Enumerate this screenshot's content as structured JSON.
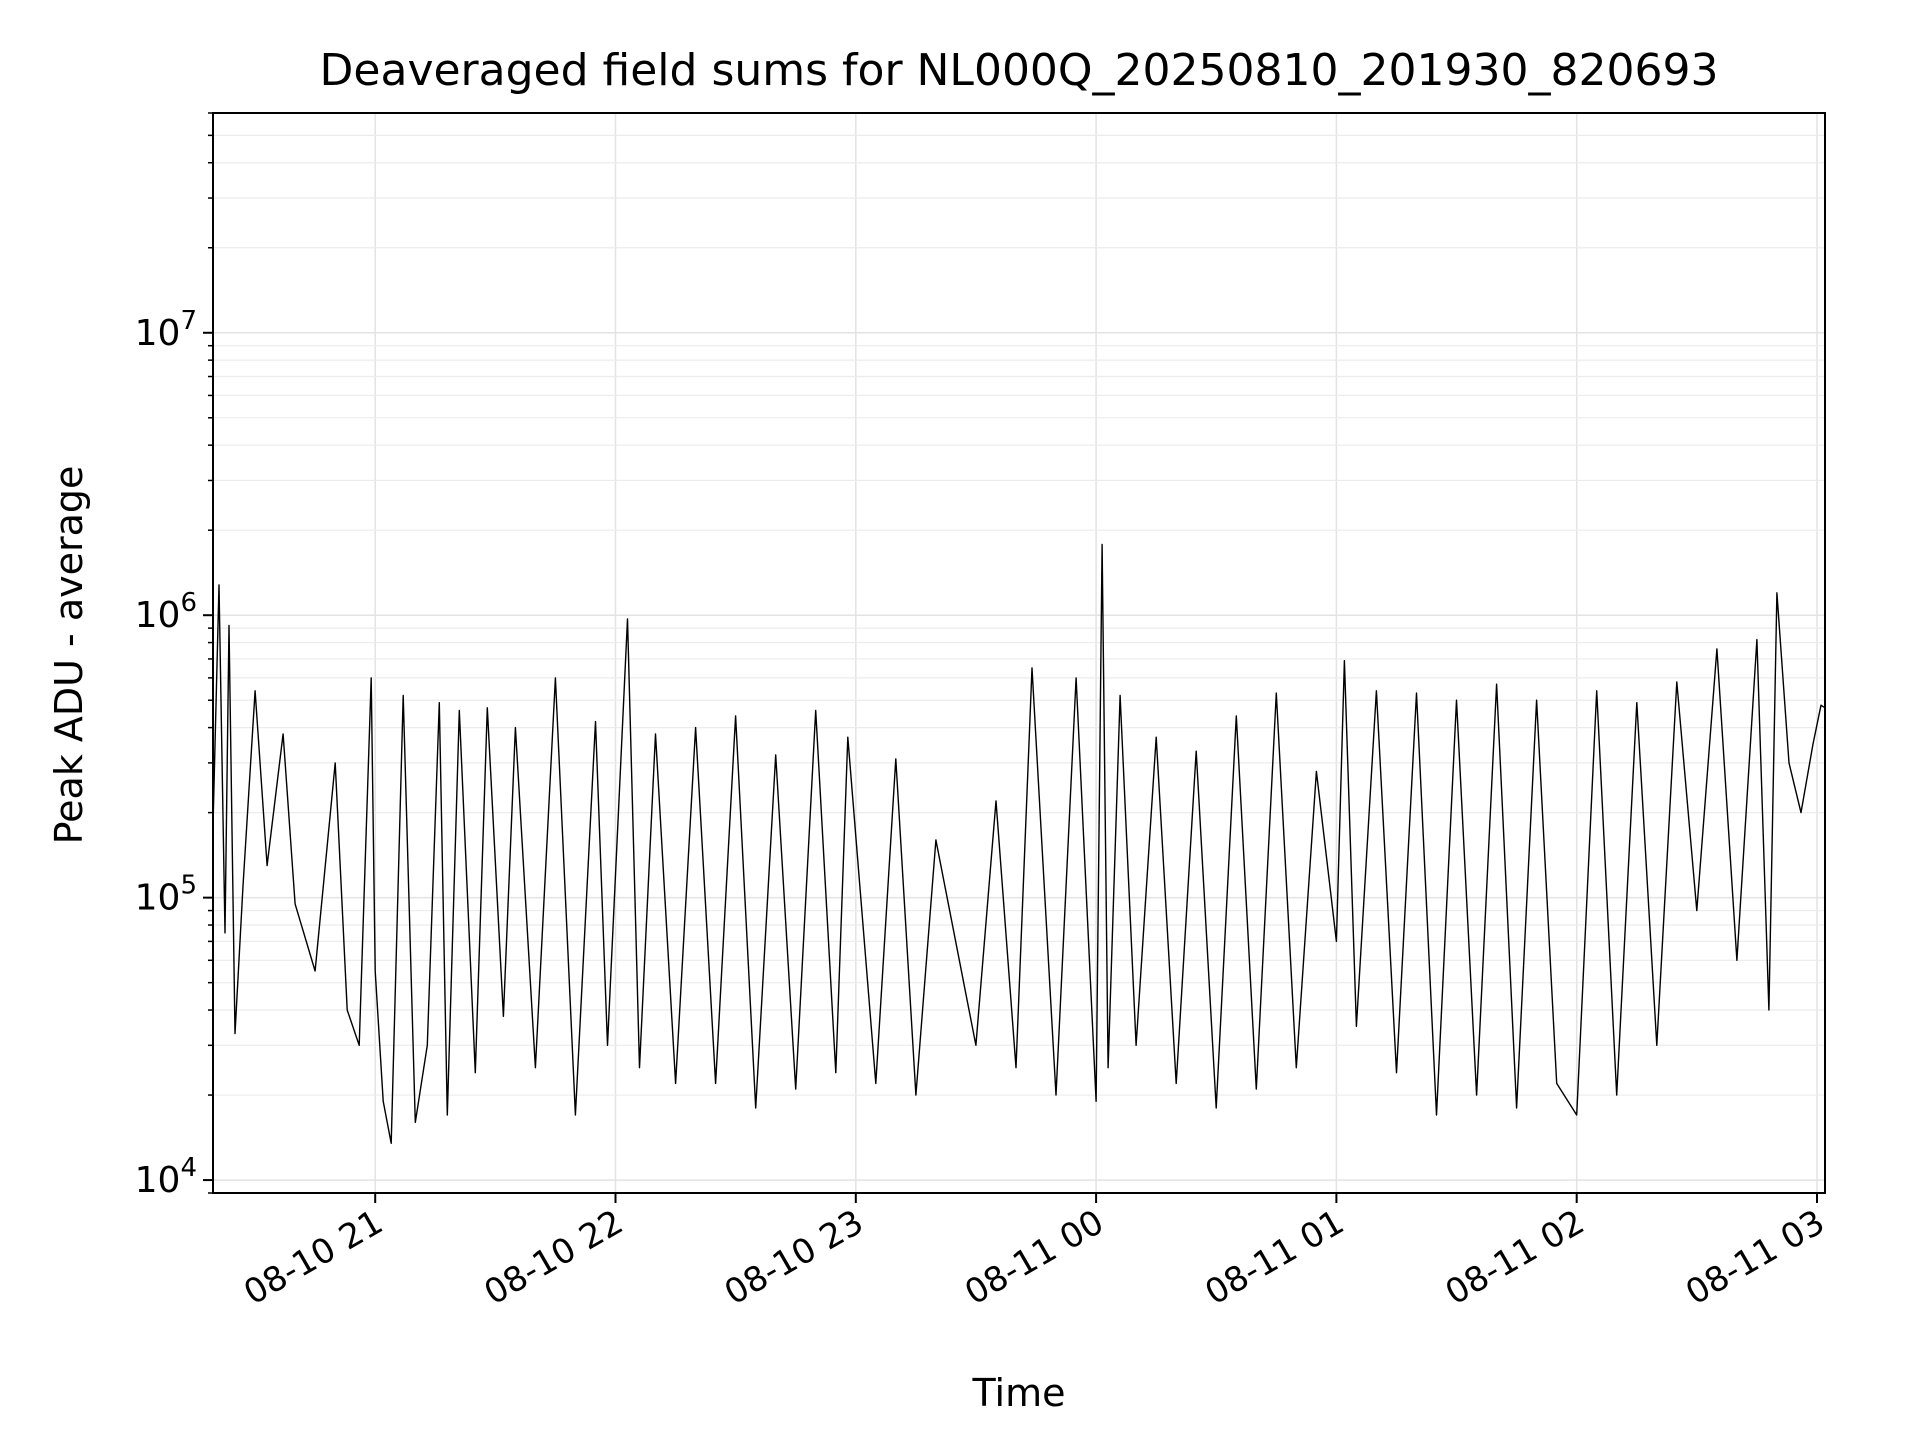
{
  "chart_data": {
    "type": "line",
    "title": "Deaveraged field sums for NL000Q_20250810_201930_820693",
    "xlabel": "Time",
    "ylabel": "Peak ADU - average",
    "yscale": "log",
    "ylim": [
      9000,
      60000000
    ],
    "xlim": [
      "2025-08-10 20:19:30",
      "2025-08-11 03:02:00"
    ],
    "grid": true,
    "grid_minor": true,
    "line_color": "#000000",
    "x_ticks": [
      {
        "value": "2025-08-10 21:00",
        "label": "08-10 21"
      },
      {
        "value": "2025-08-10 22:00",
        "label": "08-10 22"
      },
      {
        "value": "2025-08-10 23:00",
        "label": "08-10 23"
      },
      {
        "value": "2025-08-11 00:00",
        "label": "08-11 00"
      },
      {
        "value": "2025-08-11 01:00",
        "label": "08-11 01"
      },
      {
        "value": "2025-08-11 02:00",
        "label": "08-11 02"
      },
      {
        "value": "2025-08-11 03:00",
        "label": "08-11 03"
      }
    ],
    "y_ticks": [
      {
        "value": 10000,
        "base": "10",
        "exp": "4"
      },
      {
        "value": 100000,
        "base": "10",
        "exp": "5"
      },
      {
        "value": 1000000,
        "base": "10",
        "exp": "6"
      },
      {
        "value": 10000000,
        "base": "10",
        "exp": "7"
      }
    ],
    "series": [
      {
        "x": [
          "2025-08-10 20:19:30",
          "2025-08-10 20:21:00",
          "2025-08-10 20:22:30",
          "2025-08-10 20:23:30",
          "2025-08-10 20:25:00",
          "2025-08-10 20:27:00",
          "2025-08-10 20:30:00",
          "2025-08-10 20:33:00",
          "2025-08-10 20:37:00",
          "2025-08-10 20:40:00",
          "2025-08-10 20:45:00",
          "2025-08-10 20:50:00",
          "2025-08-10 20:53:00",
          "2025-08-10 20:56:00",
          "2025-08-10 20:59:00",
          "2025-08-10 21:00:00",
          "2025-08-10 21:02:00",
          "2025-08-10 21:04:00",
          "2025-08-10 21:07:00",
          "2025-08-10 21:10:00",
          "2025-08-10 21:13:00",
          "2025-08-10 21:16:00",
          "2025-08-10 21:18:00",
          "2025-08-10 21:21:00",
          "2025-08-10 21:25:00",
          "2025-08-10 21:28:00",
          "2025-08-10 21:32:00",
          "2025-08-10 21:35:00",
          "2025-08-10 21:40:00",
          "2025-08-10 21:45:00",
          "2025-08-10 21:50:00",
          "2025-08-10 21:55:00",
          "2025-08-10 21:58:00",
          "2025-08-10 22:03:00",
          "2025-08-10 22:06:00",
          "2025-08-10 22:10:00",
          "2025-08-10 22:15:00",
          "2025-08-10 22:20:00",
          "2025-08-10 22:25:00",
          "2025-08-10 22:30:00",
          "2025-08-10 22:35:00",
          "2025-08-10 22:40:00",
          "2025-08-10 22:45:00",
          "2025-08-10 22:50:00",
          "2025-08-10 22:55:00",
          "2025-08-10 22:58:00",
          "2025-08-10 23:05:00",
          "2025-08-10 23:10:00",
          "2025-08-10 23:15:00",
          "2025-08-10 23:20:00",
          "2025-08-10 23:30:00",
          "2025-08-10 23:35:00",
          "2025-08-10 23:40:00",
          "2025-08-10 23:44:00",
          "2025-08-10 23:50:00",
          "2025-08-10 23:55:00",
          "2025-08-11 00:00:00",
          "2025-08-11 00:01:30",
          "2025-08-11 00:03:00",
          "2025-08-11 00:06:00",
          "2025-08-11 00:10:00",
          "2025-08-11 00:15:00",
          "2025-08-11 00:20:00",
          "2025-08-11 00:25:00",
          "2025-08-11 00:30:00",
          "2025-08-11 00:35:00",
          "2025-08-11 00:40:00",
          "2025-08-11 00:45:00",
          "2025-08-11 00:50:00",
          "2025-08-11 00:55:00",
          "2025-08-11 01:00:00",
          "2025-08-11 01:02:00",
          "2025-08-11 01:05:00",
          "2025-08-11 01:10:00",
          "2025-08-11 01:15:00",
          "2025-08-11 01:20:00",
          "2025-08-11 01:25:00",
          "2025-08-11 01:30:00",
          "2025-08-11 01:35:00",
          "2025-08-11 01:40:00",
          "2025-08-11 01:45:00",
          "2025-08-11 01:50:00",
          "2025-08-11 01:55:00",
          "2025-08-11 02:00:00",
          "2025-08-11 02:05:00",
          "2025-08-11 02:10:00",
          "2025-08-11 02:15:00",
          "2025-08-11 02:20:00",
          "2025-08-11 02:25:00",
          "2025-08-11 02:30:00",
          "2025-08-11 02:35:00",
          "2025-08-11 02:40:00",
          "2025-08-11 02:45:00",
          "2025-08-11 02:48:00",
          "2025-08-11 02:50:00",
          "2025-08-11 02:53:00",
          "2025-08-11 02:56:00",
          "2025-08-11 02:59:00",
          "2025-08-11 03:01:00",
          "2025-08-11 03:02:00"
        ],
        "y": [
          180000,
          1280000,
          75000,
          920000,
          33000,
          110000,
          540000,
          130000,
          380000,
          95000,
          55000,
          300000,
          40000,
          30000,
          600000,
          55000,
          19000,
          13500,
          520000,
          16000,
          30000,
          490000,
          17000,
          460000,
          24000,
          470000,
          38000,
          400000,
          25000,
          600000,
          17000,
          420000,
          30000,
          970000,
          25000,
          380000,
          22000,
          400000,
          22000,
          440000,
          18000,
          320000,
          21000,
          460000,
          24000,
          370000,
          22000,
          310000,
          20000,
          160000,
          30000,
          220000,
          25000,
          650000,
          20000,
          600000,
          19000,
          1780000,
          25000,
          520000,
          30000,
          370000,
          22000,
          330000,
          18000,
          440000,
          21000,
          530000,
          25000,
          280000,
          70000,
          690000,
          35000,
          540000,
          24000,
          530000,
          17000,
          500000,
          20000,
          570000,
          18000,
          500000,
          22000,
          17000,
          540000,
          20000,
          490000,
          30000,
          580000,
          90000,
          760000,
          60000,
          820000,
          40000,
          1200000,
          300000,
          200000,
          350000,
          480000,
          470000
        ]
      }
    ]
  }
}
